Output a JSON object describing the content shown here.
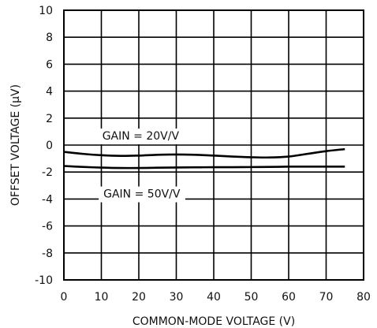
{
  "chart_data": {
    "type": "line",
    "xlabel": "COMMON-MODE VOLTAGE (V)",
    "ylabel": "OFFSET VOLTAGE (µV)",
    "xlim": [
      0,
      80
    ],
    "ylim": [
      -10,
      10
    ],
    "x_ticks": [
      0,
      10,
      20,
      30,
      40,
      50,
      60,
      70,
      80
    ],
    "y_ticks": [
      -10,
      -8,
      -6,
      -4,
      -2,
      0,
      2,
      4,
      6,
      8,
      10
    ],
    "x_tick_labels": [
      "0",
      "10",
      "20",
      "30",
      "40",
      "50",
      "60",
      "70",
      "80"
    ],
    "y_tick_labels": [
      "-10",
      "-8",
      "-6",
      "-4",
      "-2",
      "0",
      "2",
      "4",
      "6",
      "8",
      "10"
    ],
    "grid": true,
    "series": [
      {
        "name": "GAIN = 20V/V",
        "x": [
          0,
          5,
          10,
          15,
          20,
          25,
          30,
          35,
          40,
          45,
          50,
          55,
          60,
          65,
          70,
          75
        ],
        "y": [
          -0.5,
          -0.65,
          -0.75,
          -0.8,
          -0.78,
          -0.72,
          -0.7,
          -0.72,
          -0.78,
          -0.85,
          -0.9,
          -0.92,
          -0.85,
          -0.65,
          -0.45,
          -0.3
        ]
      },
      {
        "name": "GAIN = 50V/V",
        "x": [
          0,
          5,
          10,
          15,
          20,
          25,
          30,
          35,
          40,
          45,
          50,
          55,
          60,
          65,
          70,
          75
        ],
        "y": [
          -1.55,
          -1.62,
          -1.67,
          -1.7,
          -1.7,
          -1.68,
          -1.66,
          -1.65,
          -1.64,
          -1.64,
          -1.63,
          -1.62,
          -1.6,
          -1.6,
          -1.6,
          -1.6
        ]
      }
    ],
    "annotations": [
      "GAIN = 20V/V",
      "GAIN = 50V/V"
    ],
    "line_color": "#000000",
    "grid_color": "#000000"
  }
}
